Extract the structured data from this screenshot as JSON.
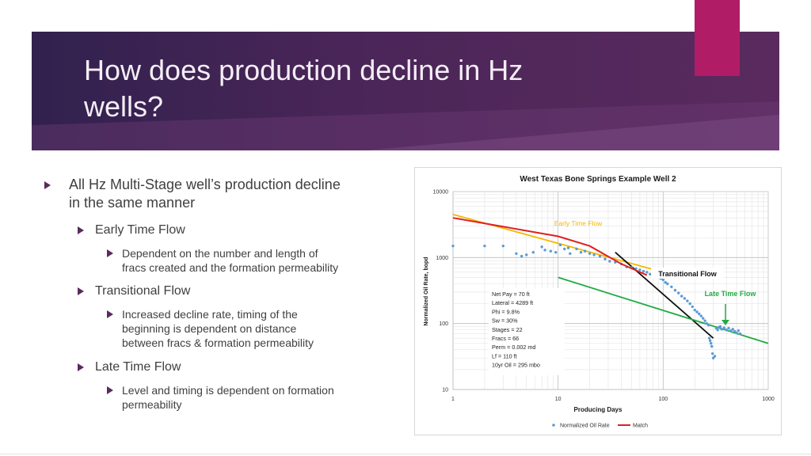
{
  "slide": {
    "title_line1": "How does production decline in Hz",
    "title_line2": "wells?",
    "colors": {
      "title_band": "#4b2658",
      "accent_tab": "#b01d66",
      "bullet_arrow": "#5a2a5e"
    }
  },
  "bullets": [
    {
      "level": 1,
      "lines": [
        "All Hz Multi-Stage well’s production decline",
        "in the same manner"
      ]
    },
    {
      "level": 2,
      "lines": [
        "Early Time Flow"
      ]
    },
    {
      "level": 3,
      "lines": [
        "Dependent on the number and length of",
        "fracs created and the formation permeability"
      ]
    },
    {
      "level": 2,
      "lines": [
        "Transitional Flow"
      ]
    },
    {
      "level": 3,
      "lines": [
        "Increased decline rate, timing of the",
        "beginning is dependent on distance",
        "between fracs & formation permeability"
      ]
    },
    {
      "level": 2,
      "lines": [
        "Late Time Flow"
      ]
    },
    {
      "level": 3,
      "lines": [
        "Level and timing is dependent on formation",
        "permeability"
      ]
    }
  ],
  "chart_data": {
    "type": "scatter",
    "title": "West Texas Bone Springs Example Well 2",
    "xlabel": "Producing Days",
    "ylabel": "Normalized Oil Rate, bopd",
    "x_scale": "log",
    "y_scale": "log",
    "xlim": [
      1,
      1000
    ],
    "ylim": [
      10,
      10000
    ],
    "x_ticks": [
      "1",
      "10",
      "100",
      "1000"
    ],
    "y_ticks": [
      "10",
      "100",
      "1000",
      "10000"
    ],
    "grid": true,
    "legend_position": "bottom",
    "legend": [
      "Normalized Oil Rate",
      "Match"
    ],
    "series": [
      {
        "name": "Normalized Oil Rate",
        "color": "#5b9bd5",
        "points": [
          [
            1,
            1500
          ],
          [
            2,
            1500
          ],
          [
            3,
            1500
          ],
          [
            4,
            1150
          ],
          [
            4.5,
            1050
          ],
          [
            5,
            1100
          ],
          [
            5.8,
            1200
          ],
          [
            7,
            1450
          ],
          [
            7.5,
            1300
          ],
          [
            8.5,
            1250
          ],
          [
            9.5,
            1200
          ],
          [
            10.5,
            1550
          ],
          [
            11.5,
            1350
          ],
          [
            12.5,
            1400
          ],
          [
            13,
            1150
          ],
          [
            15,
            1350
          ],
          [
            16.5,
            1200
          ],
          [
            18,
            1250
          ],
          [
            20,
            1150
          ],
          [
            22,
            1100
          ],
          [
            25,
            1050
          ],
          [
            28,
            950
          ],
          [
            31,
            880
          ],
          [
            35,
            850
          ],
          [
            40,
            800
          ],
          [
            45,
            720
          ],
          [
            50,
            700
          ],
          [
            55,
            680
          ],
          [
            60,
            650
          ],
          [
            65,
            620
          ],
          [
            70,
            600
          ],
          [
            75,
            560
          ],
          [
            80,
            560
          ],
          [
            85,
            520
          ],
          [
            90,
            500
          ],
          [
            95,
            480
          ],
          [
            100,
            460
          ],
          [
            105,
            420
          ],
          [
            110,
            400
          ],
          [
            120,
            360
          ],
          [
            130,
            320
          ],
          [
            140,
            290
          ],
          [
            150,
            260
          ],
          [
            160,
            240
          ],
          [
            170,
            220
          ],
          [
            180,
            200
          ],
          [
            190,
            180
          ],
          [
            200,
            160
          ],
          [
            210,
            150
          ],
          [
            220,
            140
          ],
          [
            230,
            130
          ],
          [
            240,
            120
          ],
          [
            250,
            110
          ],
          [
            260,
            100
          ],
          [
            270,
            95
          ],
          [
            275,
            60
          ],
          [
            280,
            55
          ],
          [
            285,
            50
          ],
          [
            290,
            45
          ],
          [
            295,
            35
          ],
          [
            300,
            30
          ],
          [
            310,
            32
          ],
          [
            320,
            85
          ],
          [
            330,
            80
          ],
          [
            340,
            88
          ],
          [
            350,
            90
          ],
          [
            360,
            82
          ],
          [
            380,
            86
          ],
          [
            400,
            80
          ],
          [
            420,
            85
          ],
          [
            440,
            78
          ],
          [
            460,
            82
          ],
          [
            480,
            76
          ],
          [
            500,
            72
          ],
          [
            520,
            78
          ],
          [
            540,
            70
          ]
        ]
      },
      {
        "name": "Match",
        "color": "#e02020",
        "points": [
          [
            1,
            4000
          ],
          [
            10,
            2100
          ],
          [
            20,
            1500
          ],
          [
            40,
            800
          ],
          [
            70,
            540
          ]
        ]
      }
    ],
    "trend_lines": [
      {
        "label": "Early Time Flow",
        "color": "#f5b800",
        "points": [
          [
            1,
            4500
          ],
          [
            100,
            600
          ]
        ]
      },
      {
        "label": "Transitional Flow",
        "color": "#111111",
        "points": [
          [
            35,
            1200
          ],
          [
            300,
            60
          ]
        ]
      },
      {
        "label": "Late Time Flow",
        "color": "#22aa44",
        "points": [
          [
            10,
            500
          ],
          [
            1000,
            50
          ]
        ]
      }
    ],
    "annotations": [
      {
        "text": "Early Time Flow",
        "color": "#f5b800"
      },
      {
        "text": "Transitional Flow",
        "color": "#111111"
      },
      {
        "text": "Late Time Flow",
        "color": "#22aa44"
      }
    ],
    "well_info": [
      "Net Pay = 70 ft",
      "Lateral = 4289 ft",
      "Phi = 9.8%",
      "Sw = 30%",
      "Stages  = 22",
      "Fracs = 66",
      "Perm = 0.002 md",
      "Lf = 110 ft",
      "10yr Oil = 295 mbo"
    ]
  }
}
